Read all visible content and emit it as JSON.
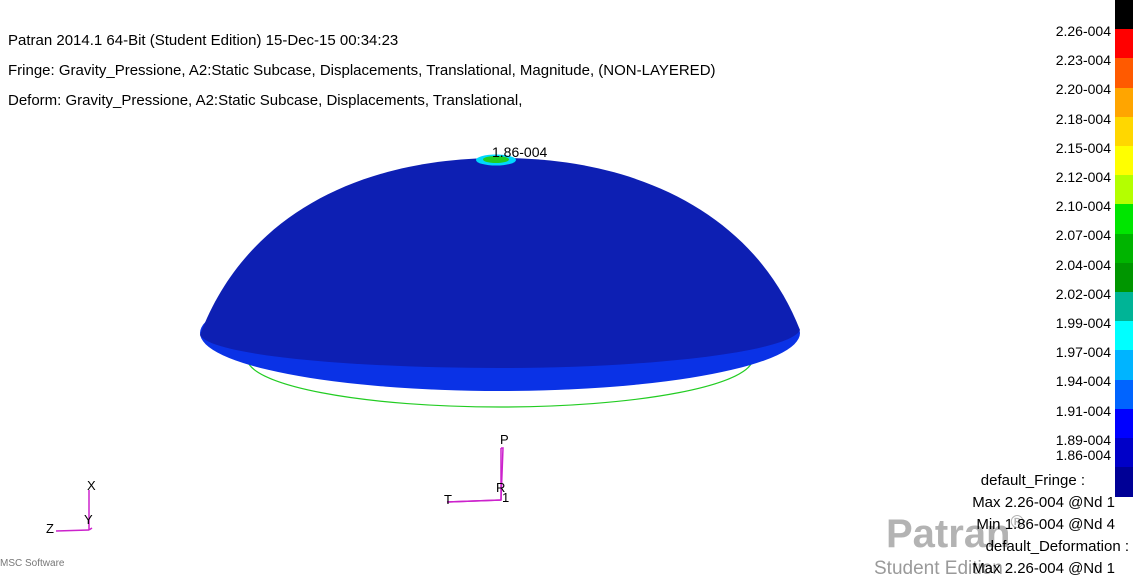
{
  "header": {
    "line1": "Patran 2014.1 64-Bit  (Student Edition) 15-Dec-15 00:34:23",
    "line2": "Fringe: Gravity_Pressione, A2:Static Subcase, Displacements, Translational, Magnitude, (NON-LAYERED)",
    "line3": "Deform: Gravity_Pressione, A2:Static Subcase, Displacements, Translational,"
  },
  "model": {
    "peak_label": "1.86-004"
  },
  "legend": {
    "labels": [
      "2.26-004",
      "2.23-004",
      "2.20-004",
      "2.18-004",
      "2.15-004",
      "2.12-004",
      "2.10-004",
      "2.07-004",
      "2.04-004",
      "2.02-004",
      "1.99-004",
      "1.97-004",
      "1.94-004",
      "1.91-004",
      "1.89-004",
      "1.86-004"
    ],
    "colors": [
      "#000000",
      "#ff0000",
      "#ff5a00",
      "#ffa500",
      "#ffd700",
      "#ffff00",
      "#b4ff00",
      "#00e600",
      "#00b400",
      "#009600",
      "#00b496",
      "#00ffff",
      "#00b4ff",
      "#0064ff",
      "#0000ff",
      "#0000c8",
      "#000096"
    ]
  },
  "info": {
    "fringe_title": "default_Fringe :",
    "fringe_max": "Max 2.26-004 @Nd 1",
    "fringe_min": "Min 1.86-004 @Nd 4",
    "deform_title": "default_Deformation :",
    "deform_max": "Max 2.26-004 @Nd 1"
  },
  "logo": {
    "brand": "Patran",
    "registered": "®",
    "edition": "Student Edition",
    "vendor": "MSC Software"
  },
  "axes_main": {
    "x": "X",
    "y": "Y",
    "z": "Z"
  },
  "axes_local": {
    "p": "P",
    "t": "T",
    "r": "R",
    "one": "1"
  }
}
